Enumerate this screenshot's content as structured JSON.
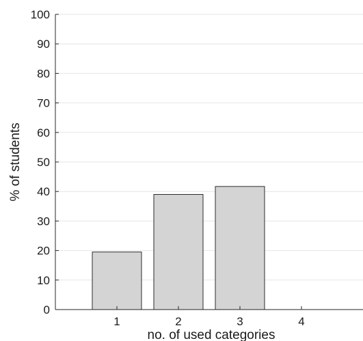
{
  "chart_data": {
    "type": "bar",
    "categories": [
      "1",
      "2",
      "3",
      "4"
    ],
    "values": [
      19.5,
      39,
      41.7,
      0
    ],
    "title": "",
    "xlabel": "no. of used categories",
    "ylabel": "% of students",
    "ylim": [
      0,
      100
    ],
    "xlim": [
      0,
      5
    ],
    "yticks": [
      "0",
      "10",
      "20",
      "30",
      "40",
      "50",
      "60",
      "70",
      "80",
      "90",
      "100"
    ],
    "grid": "horizontal",
    "colors": {
      "bar_fill": "#d4d4d4",
      "bar_edge": "#2b2b2b",
      "grid": "#e6e6e6"
    }
  }
}
